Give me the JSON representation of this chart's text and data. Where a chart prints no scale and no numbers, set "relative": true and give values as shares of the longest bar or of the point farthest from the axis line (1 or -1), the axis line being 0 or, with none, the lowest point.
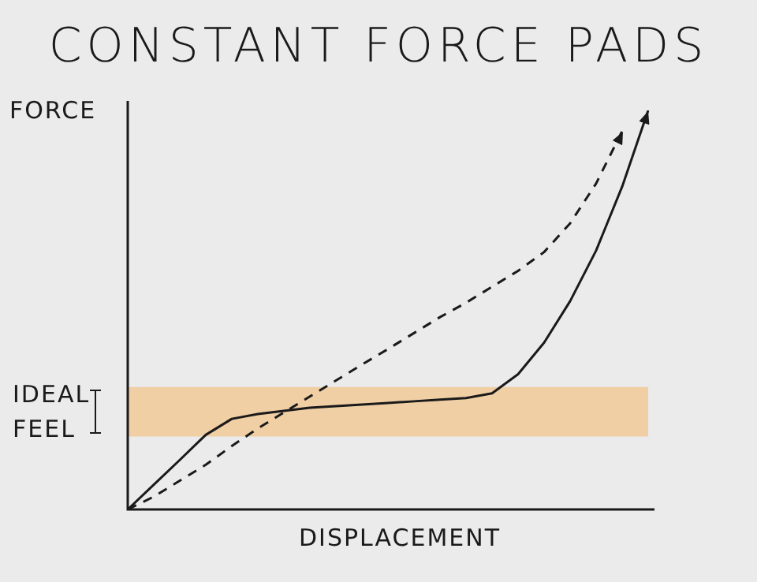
{
  "chart_data": {
    "type": "line",
    "title": "CONSTANT FORCE PADS",
    "xlabel": "DISPLACEMENT",
    "ylabel": "FORCE",
    "relative": true,
    "legend": false,
    "marker": "none",
    "categories": [
      null,
      null,
      null,
      null,
      null,
      null,
      null,
      null,
      null,
      null,
      null,
      null,
      null,
      null,
      null,
      null,
      null,
      null,
      null,
      null,
      null
    ],
    "series": [
      {
        "color": "#1a1a1a",
        "line_style": "solid",
        "values": [
          0,
          0.062,
          0.124,
          0.187,
          0.227,
          0.239,
          0.247,
          0.255,
          0.259,
          0.263,
          0.267,
          0.271,
          0.275,
          0.279,
          0.291,
          0.339,
          0.418,
          0.522,
          0.649,
          0.809,
          1
        ]
      },
      {
        "color": "#1a1a1a",
        "line_style": "dashed",
        "values": [
          0,
          0.032,
          0.072,
          0.112,
          0.159,
          0.203,
          0.243,
          0.283,
          0.323,
          0.363,
          0.402,
          0.442,
          0.482,
          0.518,
          0.558,
          0.598,
          0.645,
          0.717,
          0.817,
          0.948,
          null
        ]
      }
    ],
    "bands": [
      {
        "axis": "y",
        "from": 0.183,
        "to": 0.307,
        "label": "IDEAL FEEL",
        "color": "#f2c68c"
      }
    ]
  }
}
